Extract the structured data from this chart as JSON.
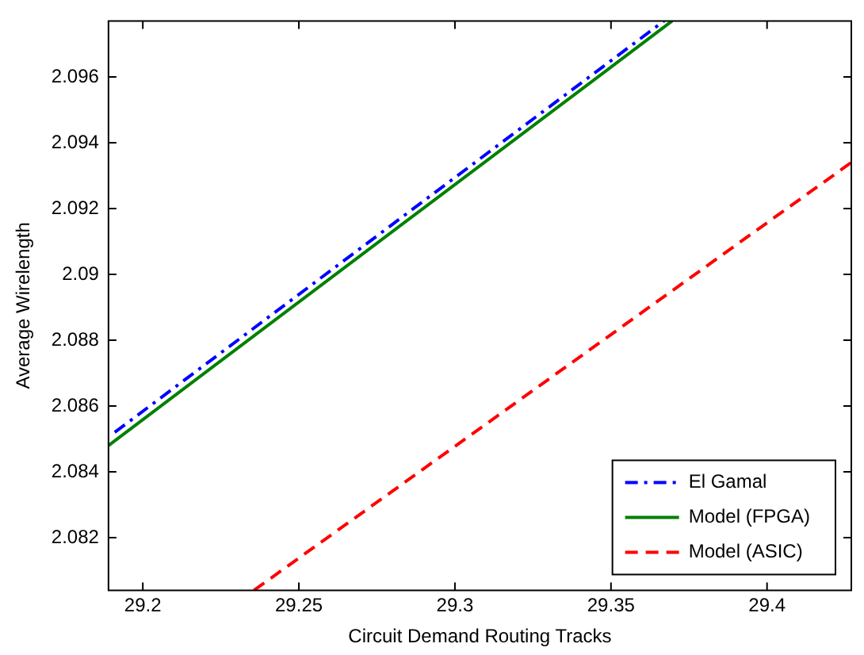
{
  "chart_data": {
    "type": "line",
    "xlabel": "Circuit Demand Routing Tracks",
    "ylabel": "Average Wirelength",
    "xlim": [
      29.189,
      29.427
    ],
    "xticks": [
      29.2,
      29.25,
      29.3,
      29.35,
      29.4
    ],
    "ylim": [
      2.0804,
      2.0977
    ],
    "yticks": [
      2.082,
      2.084,
      2.086,
      2.088,
      2.09,
      2.092,
      2.094,
      2.096
    ],
    "grid": false,
    "legend": "bottom right",
    "marker": "none",
    "series": [
      {
        "name": "El Gamal",
        "color": "#0000ff",
        "line_style": "dashdot",
        "x": [
          29.191,
          29.367
        ],
        "values": [
          2.0852,
          2.0977
        ]
      },
      {
        "name": "Model (FPGA)",
        "color": "#008000",
        "line_style": "solid",
        "x": [
          29.189,
          29.3696
        ],
        "values": [
          2.0848,
          2.0977
        ]
      },
      {
        "name": "Model (ASIC)",
        "color": "#ff0000",
        "line_style": "dashed",
        "x": [
          29.2356,
          29.427
        ],
        "values": [
          2.0804,
          2.0934
        ]
      }
    ]
  }
}
